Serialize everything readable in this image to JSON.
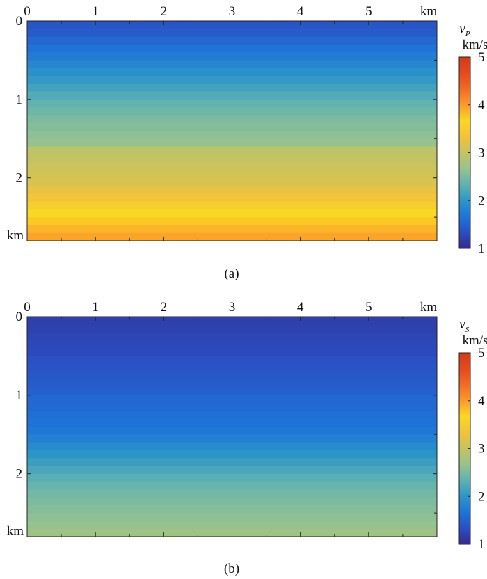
{
  "chart_data": [
    {
      "type": "heatmap",
      "caption": "(a)",
      "x_ticks": [
        "0",
        "1",
        "2",
        "3",
        "4",
        "5"
      ],
      "x_unit": "km",
      "y_ticks": [
        "0",
        "1",
        "2"
      ],
      "y_unit": "km",
      "xlim": [
        0,
        6
      ],
      "ylim": [
        0,
        2.8
      ],
      "colorbar": {
        "symbol": "v",
        "subscript": "P",
        "unit": "km/s",
        "ticks": [
          "1",
          "2",
          "3",
          "4",
          "5"
        ],
        "range": [
          1,
          5
        ]
      },
      "profile": {
        "depth_km": [
          0,
          0.1,
          0.2,
          0.3,
          0.4,
          0.5,
          0.6,
          0.7,
          0.8,
          0.9,
          1.0,
          1.1,
          1.2,
          1.3,
          1.4,
          1.5,
          1.6,
          1.7,
          1.8,
          1.9,
          2.0,
          2.1,
          2.2,
          2.3,
          2.4,
          2.5,
          2.6,
          2.7,
          2.8
        ],
        "velocity_kms": [
          1.4,
          1.45,
          1.55,
          1.65,
          1.75,
          1.85,
          1.95,
          2.05,
          2.15,
          2.25,
          2.35,
          2.42,
          2.5,
          2.55,
          2.6,
          2.65,
          2.95,
          3.0,
          3.05,
          3.1,
          3.15,
          3.25,
          3.35,
          3.5,
          3.65,
          3.75,
          3.85,
          3.95,
          3.97
        ]
      }
    },
    {
      "type": "heatmap",
      "caption": "(b)",
      "x_ticks": [
        "0",
        "1",
        "2",
        "3",
        "4",
        "5"
      ],
      "x_unit": "km",
      "y_ticks": [
        "0",
        "1",
        "2"
      ],
      "y_unit": "km",
      "xlim": [
        0,
        6
      ],
      "ylim": [
        0,
        2.8
      ],
      "colorbar": {
        "symbol": "v",
        "subscript": "S",
        "unit": "km/s",
        "ticks": [
          "1",
          "2",
          "3",
          "4",
          "5"
        ],
        "range": [
          1,
          5
        ]
      },
      "profile": {
        "depth_km": [
          0,
          0.1,
          0.2,
          0.3,
          0.4,
          0.5,
          0.6,
          0.7,
          0.8,
          0.9,
          1.0,
          1.1,
          1.2,
          1.3,
          1.4,
          1.5,
          1.6,
          1.7,
          1.8,
          1.9,
          2.0,
          2.1,
          2.2,
          2.3,
          2.4,
          2.5,
          2.6,
          2.7,
          2.8
        ],
        "velocity_kms": [
          1.2,
          1.22,
          1.25,
          1.28,
          1.3,
          1.35,
          1.38,
          1.42,
          1.45,
          1.5,
          1.55,
          1.58,
          1.62,
          1.66,
          1.7,
          1.8,
          1.9,
          2.0,
          2.1,
          2.2,
          2.3,
          2.38,
          2.45,
          2.5,
          2.55,
          2.6,
          2.65,
          2.72,
          2.78
        ]
      }
    }
  ]
}
